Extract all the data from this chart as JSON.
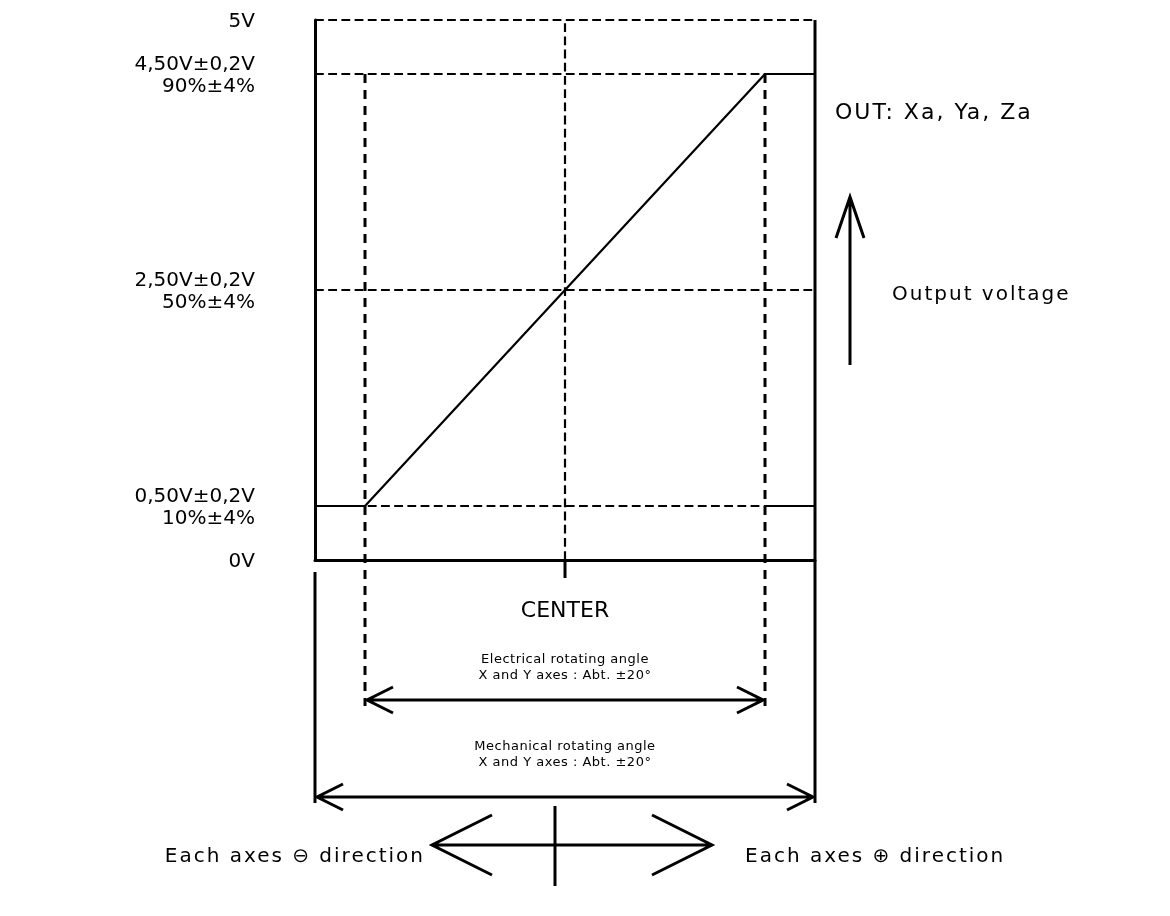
{
  "chart_data": {
    "type": "line",
    "ylabel": "Output voltage",
    "categories": [
      null,
      null,
      null,
      null,
      null,
      "CENTER",
      null,
      null,
      null,
      null,
      null
    ],
    "series": [
      {
        "color": "#000000",
        "values": [
          0.5,
          0.5,
          1,
          1.5,
          2,
          2.5,
          3,
          3.5,
          4,
          4.5,
          4.5
        ]
      },
      {
        "color": "#000000",
        "values": [
          null,
          null,
          null,
          null,
          null,
          null,
          null,
          null,
          null,
          0.5,
          0.5
        ]
      }
    ],
    "ylim": [
      0,
      5
    ],
    "yticks": [
      {
        "value": 0,
        "label": "0V"
      },
      {
        "value": 0.5,
        "label": "0,50V±0,2V\n10%±4%"
      },
      {
        "value": 2.5,
        "label": "2,50V±0,2V\n50%±4%"
      },
      {
        "value": 4.5,
        "label": "4,50V±0,2V\n90%±4%"
      },
      {
        "value": 5,
        "label": "5V"
      }
    ],
    "ref_lines": [
      {
        "axis": "y",
        "value": 5,
        "line_style": "dashed",
        "color": "#000000"
      },
      {
        "axis": "y",
        "value": 4.5,
        "line_style": "dashed",
        "color": "#000000"
      },
      {
        "axis": "y",
        "value": 2.5,
        "line_style": "dashed",
        "color": "#000000"
      },
      {
        "axis": "y",
        "value": 0.5,
        "line_style": "dashed",
        "color": "#000000"
      },
      {
        "axis": "x",
        "value": "CENTER",
        "line_style": "dashed",
        "color": "#000000"
      }
    ],
    "annotations": [
      "OUT: Xa, Ya, Za",
      "Electrical rotating angle\nX and Y axes : Abt. ±20°",
      "Mechanical rotating angle\nX and Y axes : Abt. ±20°",
      "Each axes ⊖ direction",
      "Each axes ⊕ direction"
    ],
    "marker": "none",
    "line_style": "solid",
    "grid": false
  }
}
